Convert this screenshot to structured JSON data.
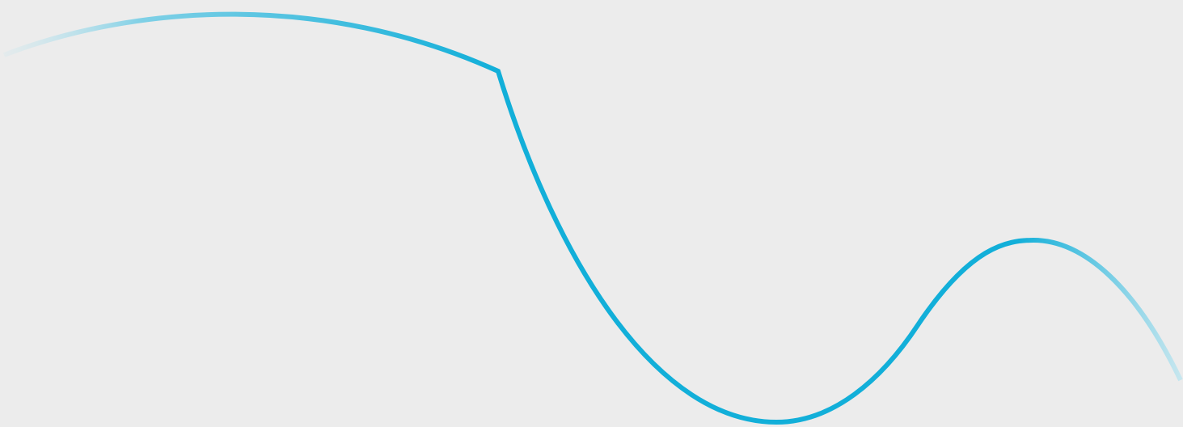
{
  "background": {
    "color": "#ececec"
  },
  "wave": {
    "stroke_color": "#12afd9",
    "stroke_color_faded": "#c9e7ef",
    "stroke_color_mid": "#7fd0e6"
  }
}
